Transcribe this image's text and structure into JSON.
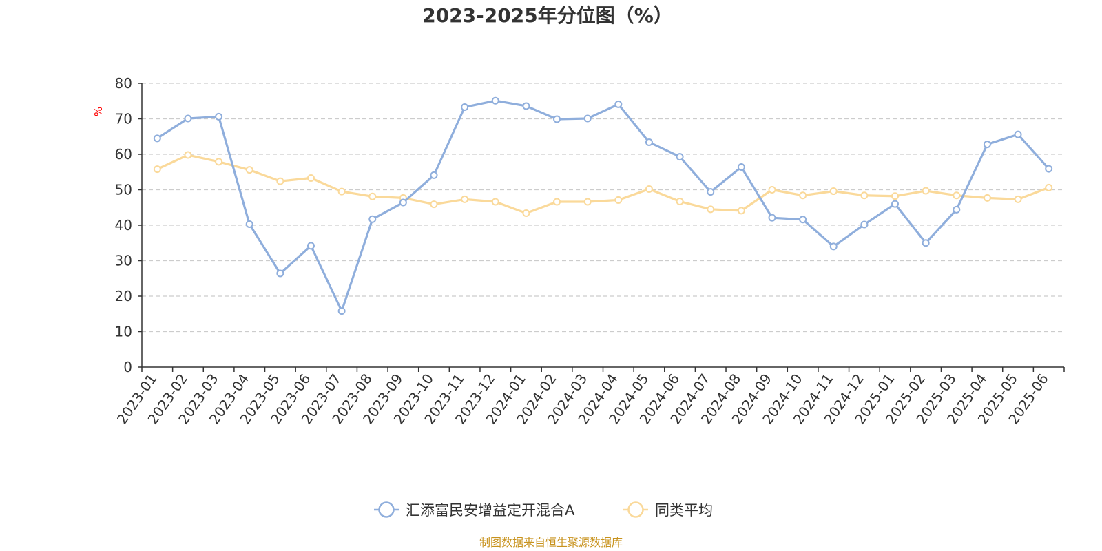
{
  "chart_data": {
    "type": "line",
    "title": "2023-2025年分位图（%）",
    "ylabel": "%",
    "xlabel": "",
    "ylim": [
      0,
      80
    ],
    "yticks": [
      0,
      10,
      20,
      30,
      40,
      50,
      60,
      70,
      80
    ],
    "grid": true,
    "legend_position": "bottom",
    "categories": [
      "2023-01",
      "2023-02",
      "2023-03",
      "2023-04",
      "2023-05",
      "2023-06",
      "2023-07",
      "2023-08",
      "2023-09",
      "2023-10",
      "2023-11",
      "2023-12",
      "2024-01",
      "2024-02",
      "2024-03",
      "2024-04",
      "2024-05",
      "2024-06",
      "2024-07",
      "2024-08",
      "2024-09",
      "2024-10",
      "2024-11",
      "2024-12",
      "2025-01",
      "2025-02",
      "2025-03",
      "2025-04",
      "2025-05",
      "2025-06"
    ],
    "series": [
      {
        "name": "汇添富民安增益定开混合A",
        "color": "#8FAEDC",
        "values": [
          64.5,
          70.1,
          70.6,
          40.3,
          26.4,
          34.2,
          15.8,
          41.7,
          46.4,
          54.1,
          73.3,
          75.1,
          73.6,
          69.9,
          70.1,
          74.1,
          63.4,
          59.3,
          49.4,
          56.4,
          42.1,
          41.6,
          34.0,
          40.2,
          46.0,
          35.0,
          44.4,
          62.8,
          65.6,
          55.9
        ]
      },
      {
        "name": "同类平均",
        "color": "#FAD99A",
        "values": [
          55.8,
          59.8,
          57.9,
          55.6,
          52.4,
          53.3,
          49.5,
          48.1,
          47.7,
          45.9,
          47.3,
          46.6,
          43.4,
          46.6,
          46.6,
          47.1,
          50.2,
          46.7,
          44.5,
          44.1,
          50.0,
          48.4,
          49.6,
          48.4,
          48.2,
          49.7,
          48.4,
          47.7,
          47.3,
          50.6
        ]
      }
    ]
  },
  "colors": {
    "axis": "#333333",
    "grid": "#cccccc",
    "unit_label": "#ff0000",
    "source_label": "#C8931E"
  },
  "footer": {
    "source": "制图数据来自恒生聚源数据库"
  }
}
